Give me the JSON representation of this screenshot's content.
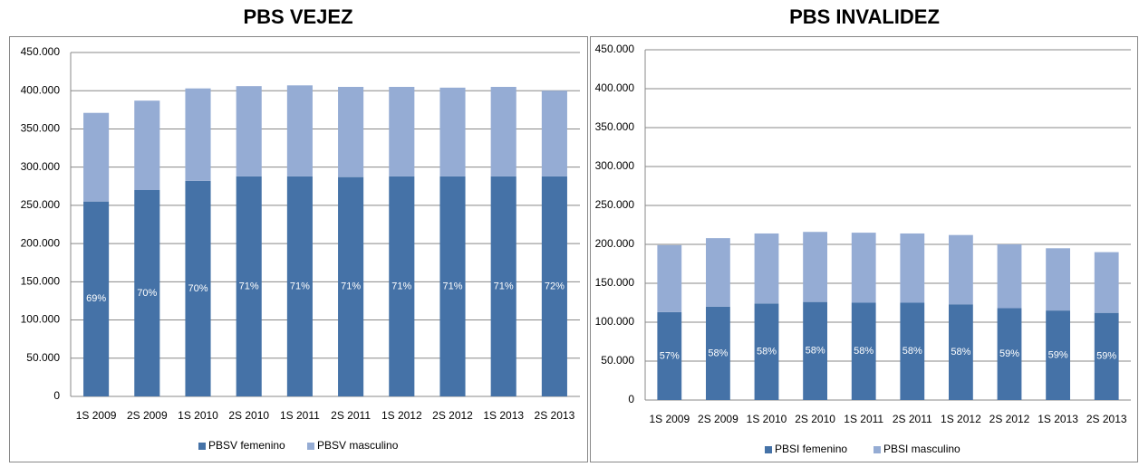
{
  "chart_data": [
    {
      "type": "stacked_bar",
      "title": "PBS VEJEZ",
      "categories": [
        "1S 2009",
        "2S 2009",
        "1S 2010",
        "2S 2010",
        "1S 2011",
        "2S 2011",
        "1S 2012",
        "2S 2012",
        "1S 2013",
        "2S 2013"
      ],
      "series": [
        {
          "name": "PBSV femenino",
          "color": "#4572a7",
          "values": [
            255000,
            270000,
            282000,
            288000,
            288000,
            287000,
            288000,
            288000,
            288000,
            288000
          ]
        },
        {
          "name": "PBSV masculino",
          "color": "#95acd4",
          "values": [
            116000,
            117000,
            121000,
            118000,
            119000,
            118000,
            117000,
            116000,
            117000,
            112000
          ]
        }
      ],
      "share_labels": [
        "69%",
        "70%",
        "70%",
        "71%",
        "71%",
        "71%",
        "71%",
        "71%",
        "71%",
        "72%"
      ],
      "ylim": [
        0,
        450000
      ],
      "yticks": [
        0,
        {
          "value": 50000,
          "label": "50.000"
        },
        {
          "value": 100000,
          "label": "100.000"
        },
        {
          "value": 150000,
          "label": "150.000"
        },
        {
          "value": 200000,
          "label": "200.000"
        },
        {
          "value": 250000,
          "label": "250.000"
        },
        {
          "value": 300000,
          "label": "300.000"
        },
        {
          "value": 350000,
          "label": "350.000"
        },
        {
          "value": 400000,
          "label": "400.000"
        },
        {
          "value": 450000,
          "label": "450.000"
        }
      ],
      "grid": true,
      "legend": "bottom"
    },
    {
      "type": "stacked_bar",
      "title": "PBS INVALIDEZ",
      "categories": [
        "1S 2009",
        "2S 2009",
        "1S 2010",
        "2S 2010",
        "1S 2011",
        "2S 2011",
        "1S 2012",
        "2S 2012",
        "1S 2013",
        "2S 2013"
      ],
      "series": [
        {
          "name": "PBSI femenino",
          "color": "#4572a7",
          "values": [
            113000,
            120000,
            124000,
            126000,
            125000,
            125000,
            123000,
            118000,
            115000,
            112000
          ]
        },
        {
          "name": "PBSI masculino",
          "color": "#95acd4",
          "values": [
            86000,
            88000,
            90000,
            90000,
            90000,
            89000,
            89000,
            82000,
            80000,
            78000
          ]
        }
      ],
      "share_labels": [
        "57%",
        "58%",
        "58%",
        "58%",
        "58%",
        "58%",
        "58%",
        "59%",
        "59%",
        "59%"
      ],
      "ylim": [
        0,
        450000
      ],
      "yticks": [
        0,
        {
          "value": 50000,
          "label": "50.000"
        },
        {
          "value": 100000,
          "label": "100.000"
        },
        {
          "value": 150000,
          "label": "150.000"
        },
        {
          "value": 200000,
          "label": "200.000"
        },
        {
          "value": 250000,
          "label": "250.000"
        },
        {
          "value": 300000,
          "label": "300.000"
        },
        {
          "value": 350000,
          "label": "350.000"
        },
        {
          "value": 400000,
          "label": "400.000"
        },
        {
          "value": 450000,
          "label": "450.000"
        }
      ],
      "grid": true,
      "legend": "bottom"
    }
  ]
}
